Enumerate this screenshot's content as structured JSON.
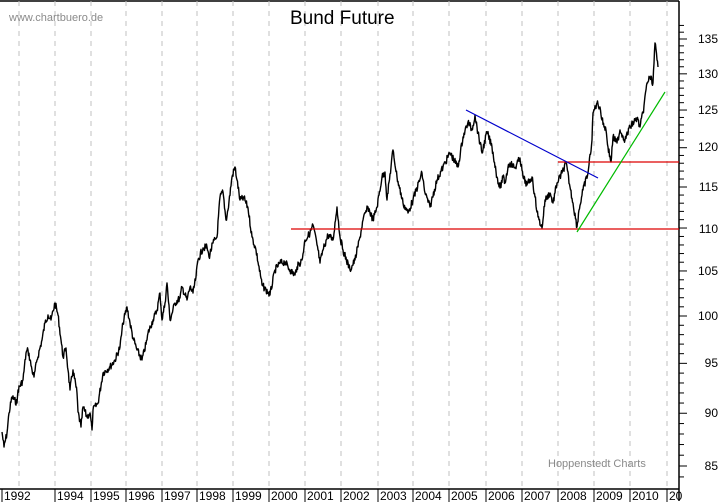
{
  "chart_data": {
    "type": "line",
    "title": "Bund Future",
    "watermark": "www.chartbuero.de",
    "source": "Hoppenstedt Charts",
    "xlabel": "",
    "ylabel": "",
    "ylim": [
      83,
      138
    ],
    "y_axis_position": "right",
    "grid": "vertical dashed (yearly)",
    "x_ticks": [
      "1992",
      "1994",
      "1995",
      "1996",
      "1997",
      "1998",
      "1999",
      "2000",
      "2001",
      "2002",
      "2003",
      "2004",
      "2005",
      "2006",
      "2007",
      "2008",
      "2009",
      "2010",
      "20"
    ],
    "y_ticks": [
      85,
      90,
      95,
      100,
      105,
      110,
      115,
      120,
      125,
      130,
      135
    ],
    "series": [
      {
        "name": "Bund Future",
        "color": "#000000",
        "points_approx": [
          {
            "date": "1992.0",
            "value": 88
          },
          {
            "date": "1992.5",
            "value": 93
          },
          {
            "date": "1993.0",
            "value": 96
          },
          {
            "date": "1993.5",
            "value": 99
          },
          {
            "date": "1994.0",
            "value": 101.5
          },
          {
            "date": "1994.5",
            "value": 92
          },
          {
            "date": "1994.9",
            "value": 88
          },
          {
            "date": "1995.5",
            "value": 93.5
          },
          {
            "date": "1996.0",
            "value": 100
          },
          {
            "date": "1996.5",
            "value": 97
          },
          {
            "date": "1997.0",
            "value": 101
          },
          {
            "date": "1997.6",
            "value": 104
          },
          {
            "date": "1998.0",
            "value": 108
          },
          {
            "date": "1998.6",
            "value": 114
          },
          {
            "date": "1998.8",
            "value": 117.5
          },
          {
            "date": "1999.5",
            "value": 107
          },
          {
            "date": "1999.9",
            "value": 103
          },
          {
            "date": "2000.5",
            "value": 105
          },
          {
            "date": "2001.0",
            "value": 109
          },
          {
            "date": "2001.5",
            "value": 106
          },
          {
            "date": "2002.0",
            "value": 109
          },
          {
            "date": "2002.3",
            "value": 105.5
          },
          {
            "date": "2002.9",
            "value": 113
          },
          {
            "date": "2003.5",
            "value": 116
          },
          {
            "date": "2003.8",
            "value": 112
          },
          {
            "date": "2004.4",
            "value": 116
          },
          {
            "date": "2004.8",
            "value": 114
          },
          {
            "date": "2005.0",
            "value": 118
          },
          {
            "date": "2005.3",
            "value": 123
          },
          {
            "date": "2005.5",
            "value": 125
          },
          {
            "date": "2006.0",
            "value": 121
          },
          {
            "date": "2006.4",
            "value": 114
          },
          {
            "date": "2007.0",
            "value": 117
          },
          {
            "date": "2007.5",
            "value": 112
          },
          {
            "date": "2007.6",
            "value": 110
          },
          {
            "date": "2008.0",
            "value": 116
          },
          {
            "date": "2008.2",
            "value": 118
          },
          {
            "date": "2008.5",
            "value": 110
          },
          {
            "date": "2008.9",
            "value": 117
          },
          {
            "date": "2009.0",
            "value": 126
          },
          {
            "date": "2009.3",
            "value": 124
          },
          {
            "date": "2009.5",
            "value": 118.5
          },
          {
            "date": "2009.8",
            "value": 121
          },
          {
            "date": "2010.2",
            "value": 123
          },
          {
            "date": "2010.5",
            "value": 129
          },
          {
            "date": "2010.7",
            "value": 134.5
          },
          {
            "date": "2010.8",
            "value": 131
          }
        ]
      }
    ],
    "annotations": [
      {
        "type": "horizontal-line",
        "value": 110,
        "color": "#dd0000",
        "from": "2000.1",
        "to": "end"
      },
      {
        "type": "horizontal-line",
        "value": 118.5,
        "color": "#dd0000",
        "from": "2008.0",
        "to": "end"
      },
      {
        "type": "trendline-down",
        "color": "#0000cc",
        "from": {
          "date": "2005.4",
          "value": 125
        },
        "to": {
          "date": "2009.1",
          "value": 116.5
        }
      },
      {
        "type": "trendline-up",
        "color": "#00bb00",
        "from": {
          "date": "2008.5",
          "value": 110
        },
        "to": {
          "date": "2011.0",
          "value": 128
        }
      }
    ]
  }
}
